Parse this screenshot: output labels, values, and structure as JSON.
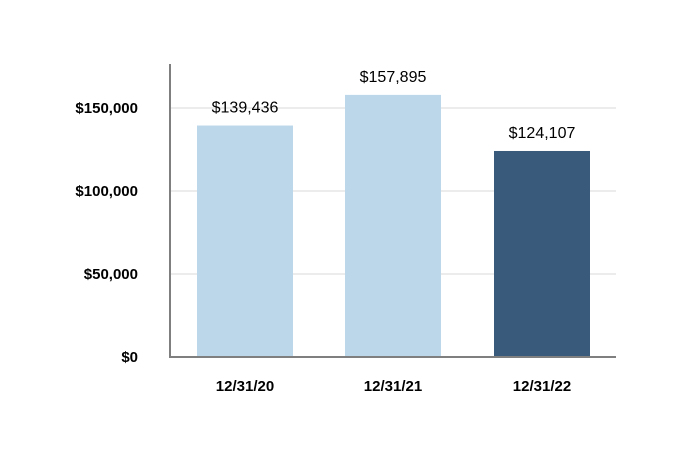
{
  "chart_data": {
    "type": "bar",
    "title": "",
    "xlabel": "",
    "ylabel": "",
    "categories": [
      "12/31/20",
      "12/31/21",
      "12/31/22"
    ],
    "values": [
      139436,
      157895,
      124107
    ],
    "data_labels": [
      "$139,436",
      "$157,895",
      "$124,107"
    ],
    "colors": [
      "#bdd7ea",
      "#bdd7ea",
      "#3a5a7c"
    ],
    "ylim": [
      0,
      165000
    ],
    "yticks": [
      0,
      50000,
      100000,
      150000
    ],
    "ytick_labels": [
      "$0",
      "$50,000",
      "$100,000",
      "$150,000"
    ],
    "grid": true,
    "legend": "none"
  }
}
